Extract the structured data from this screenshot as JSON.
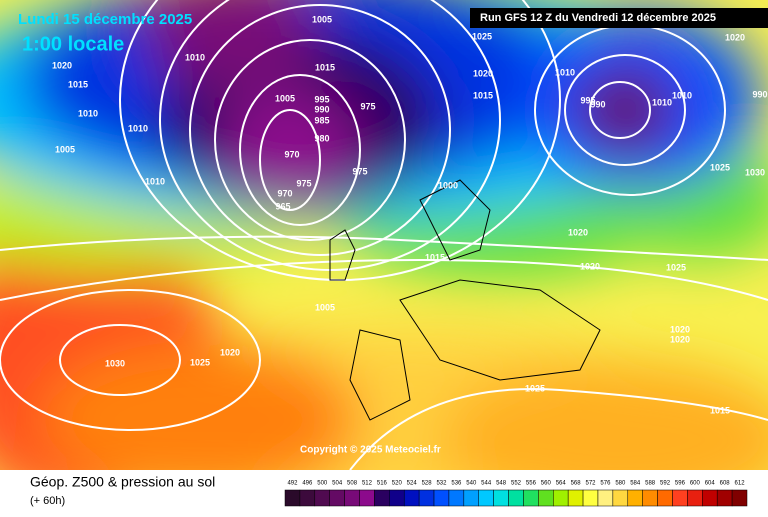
{
  "header": {
    "date": "Lundi 15 décembre 2025",
    "time": "1:00 locale",
    "run": "Run GFS 12 Z du Vendredi 12 décembre 2025"
  },
  "copyright": "Copyright © 2025 Meteociel.fr",
  "footer": {
    "title": "Géop. Z500 & pression au sol",
    "lead": "(+ 60h)"
  },
  "legend": {
    "values": [
      492,
      496,
      500,
      504,
      508,
      512,
      516,
      520,
      524,
      528,
      532,
      536,
      540,
      544,
      548,
      552,
      556,
      560,
      564,
      568,
      572,
      576,
      580,
      584,
      588,
      592,
      596,
      600,
      604,
      608,
      612
    ],
    "colors": [
      "#2a0a2a",
      "#3c0a3c",
      "#500a50",
      "#640a64",
      "#780a78",
      "#8c0a8c",
      "#2a0060",
      "#10008a",
      "#0010c0",
      "#0030e0",
      "#0050ff",
      "#0078ff",
      "#00a0ff",
      "#00c8ff",
      "#00e0e0",
      "#00e0a0",
      "#20e060",
      "#60e020",
      "#a0f000",
      "#e0f000",
      "#ffff40",
      "#fff080",
      "#ffd840",
      "#ffb000",
      "#ff8c00",
      "#ff6a00",
      "#ff4020",
      "#e82010",
      "#c00000",
      "#a00000",
      "#800000"
    ]
  },
  "isobar_labels": [
    1005,
    1025,
    1020,
    1015,
    1010,
    995,
    990,
    1010,
    1010,
    1020,
    990,
    1025,
    1030,
    1020,
    1015,
    1010,
    1005,
    1010,
    1010,
    1010,
    1015,
    1005,
    995,
    990,
    985,
    975,
    970,
    980,
    975,
    970,
    965,
    975,
    1000,
    1015,
    1020,
    1020,
    1025,
    1005,
    1025,
    1020,
    1030,
    1020,
    1020,
    1025,
    1015
  ]
}
